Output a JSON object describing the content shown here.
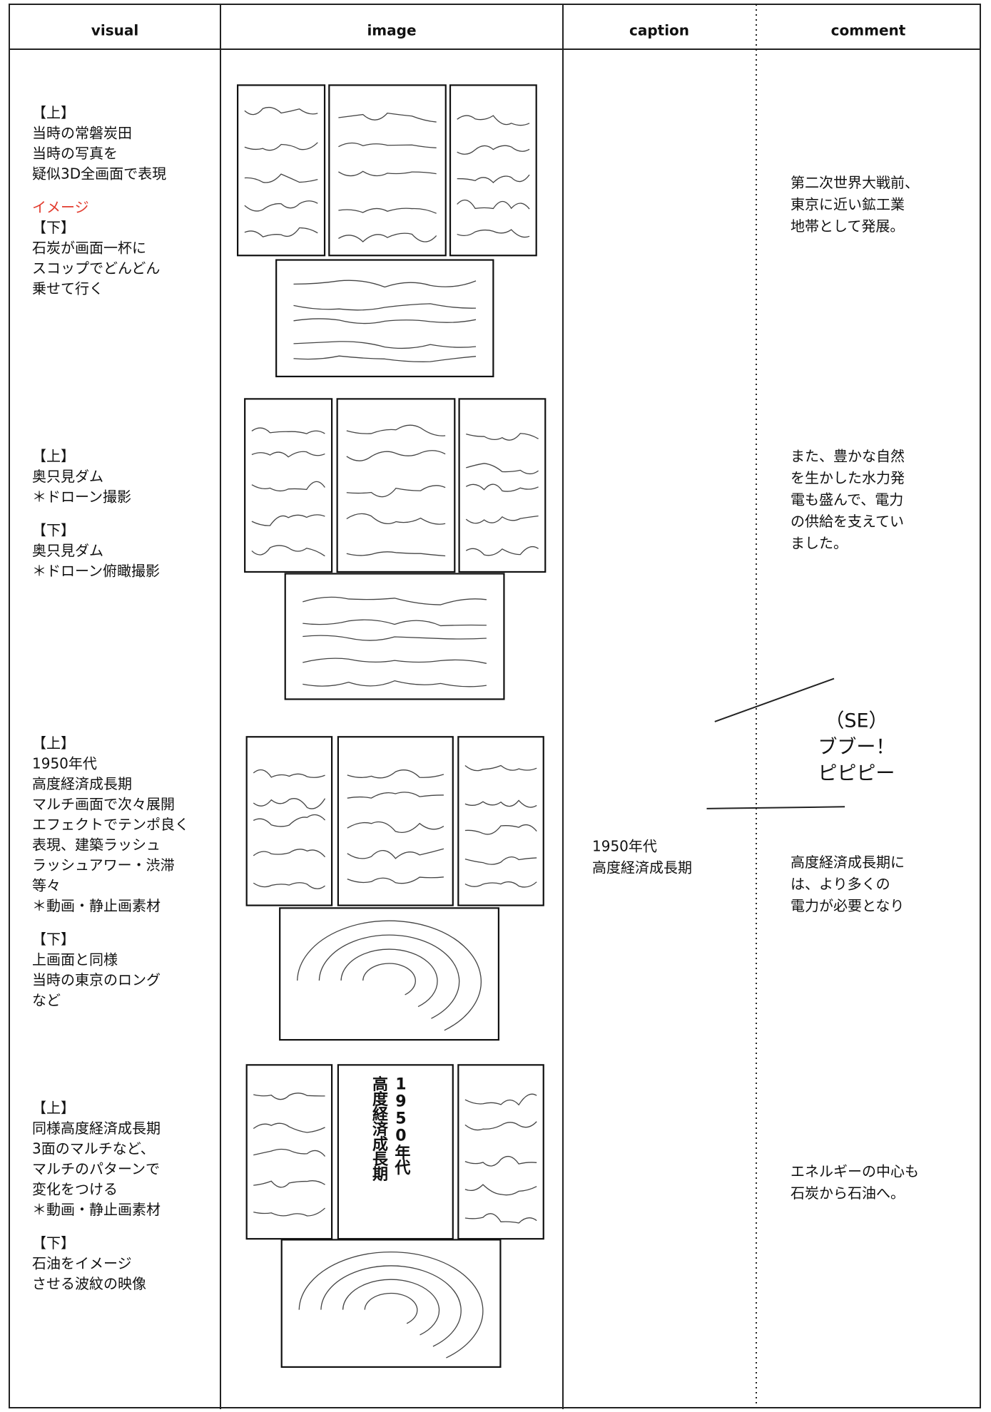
{
  "header": {
    "columns": [
      "visual",
      "image",
      "caption",
      "comment"
    ]
  },
  "rows": [
    {
      "visual": [
        {
          "lines": [
            "【上】",
            "当時の常磐炭田",
            "当時の写真を",
            "疑似3D全画面で表現"
          ]
        },
        {
          "lead": "イメージ",
          "lead_color": "#e23b2e",
          "lines": [
            "【下】",
            "石炭が画面一杯に",
            "スコップでどんどん",
            "乗せて行く"
          ]
        }
      ],
      "comment": [
        "第二次世界大戦前、",
        "東京に近い鉱工業",
        "地帯として発展。"
      ]
    },
    {
      "visual": [
        {
          "lines": [
            "【上】",
            "奥只見ダム",
            "＊ドローン撮影"
          ]
        },
        {
          "lines": [
            "【下】",
            "奥只見ダム",
            "＊ドローン俯瞰撮影"
          ]
        }
      ],
      "comment": [
        "また、豊かな自然",
        "を生かした水力発",
        "電も盛んで、電力",
        "の供給を支えてい",
        "ました。"
      ]
    },
    {
      "visual": [
        {
          "lines": [
            "【上】",
            "1950年代",
            "高度経済成長期",
            "マルチ画面で次々展開",
            "エフェクトでテンポ良く",
            "表現、建築ラッシュ",
            "ラッシュアワー・渋滞",
            "等々",
            "＊動画・静止画素材"
          ]
        },
        {
          "lines": [
            "【下】",
            "上画面と同様",
            "当時の東京のロング",
            "など"
          ]
        }
      ],
      "caption": [
        "1950年代",
        "高度経済成長期"
      ],
      "comment": [
        "高度経済成長期に",
        "は、より多くの",
        "電力が必要となり"
      ]
    },
    {
      "visual": [
        {
          "lines": [
            "【上】",
            "同様高度経済成長期",
            "3面のマルチなど、",
            "マルチのパターンで",
            "変化をつける",
            "＊動画・静止画素材"
          ]
        },
        {
          "lines": [
            "【下】",
            "石油をイメージ",
            "させる波紋の映像"
          ]
        }
      ],
      "image_text": [
        "1950年代",
        "高度経済成長期"
      ],
      "comment": [
        "エネルギーの中心も",
        "石炭から石油へ。"
      ]
    }
  ],
  "sound_effect": [
    "（SE）",
    "ブブー！",
    "ピピピー"
  ]
}
